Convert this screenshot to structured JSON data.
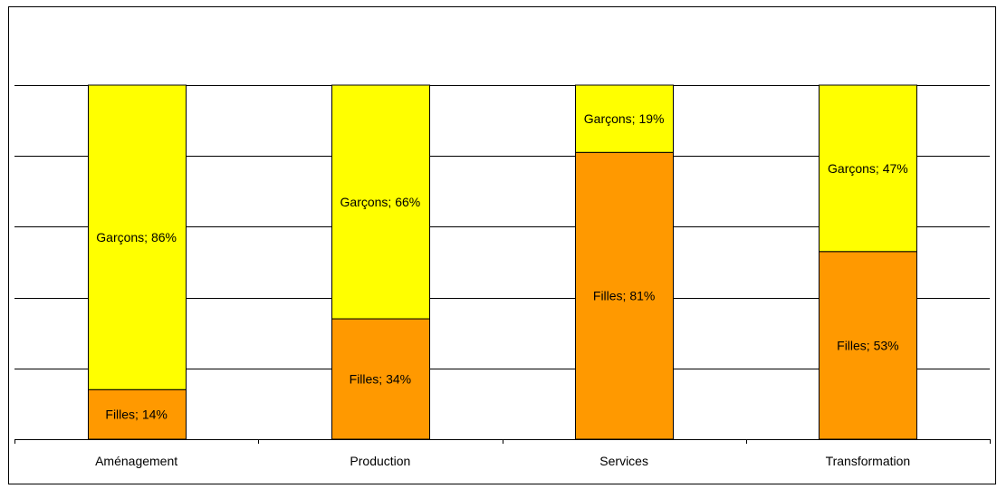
{
  "chart_data": {
    "type": "bar",
    "stacked": true,
    "percent_stacked": true,
    "categories": [
      "Aménagement",
      "Production",
      "Services",
      "Transformation"
    ],
    "series": [
      {
        "name": "Filles",
        "values": [
          14,
          34,
          81,
          53
        ],
        "color": "#FF9900"
      },
      {
        "name": "Garçons",
        "values": [
          86,
          66,
          19,
          47
        ],
        "color": "#FFFF00"
      }
    ],
    "data_labels": [
      [
        "Filles; 14%",
        "Filles; 34%",
        "Filles; 81%",
        "Filles; 53%"
      ],
      [
        "Garçons; 86%",
        "Garçons; 66%",
        "Garçons; 19%",
        "Garçons; 47%"
      ]
    ],
    "ylim": [
      0,
      100
    ],
    "grid": true,
    "legend": "none",
    "title": "",
    "xlabel": "",
    "ylabel": ""
  }
}
